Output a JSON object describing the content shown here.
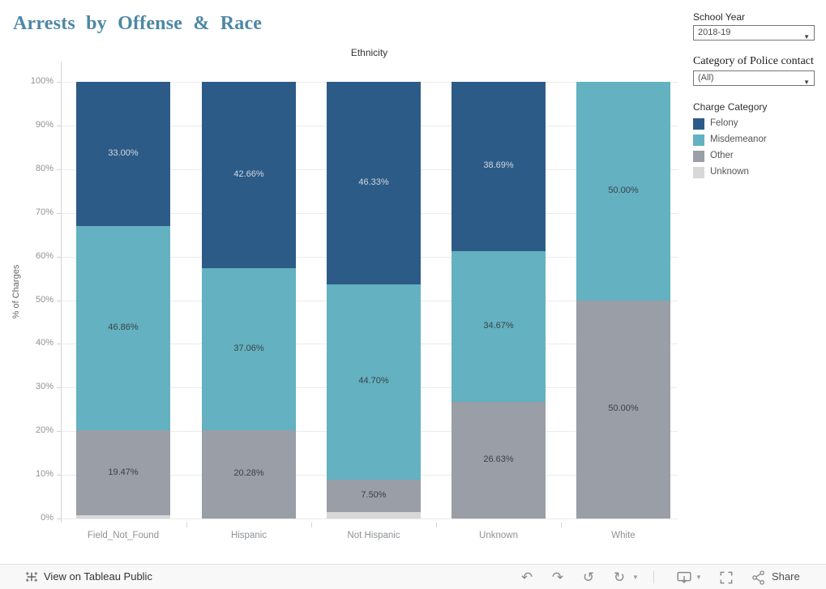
{
  "page": {
    "title": "Arrests by Offense & Race"
  },
  "filters": {
    "school_year": {
      "label": "School Year",
      "value": "2018-19"
    },
    "police_contact": {
      "label": "Category of Police contact",
      "value": "(All)"
    }
  },
  "legend": {
    "title": "Charge Category",
    "items": [
      {
        "label": "Felony",
        "color": "#2d5b87"
      },
      {
        "label": "Misdemeanor",
        "color": "#63b1c1"
      },
      {
        "label": "Other",
        "color": "#999ea7"
      },
      {
        "label": "Unknown",
        "color": "#d8d8d8"
      }
    ]
  },
  "chart_data": {
    "type": "bar",
    "stacked": true,
    "normalized": true,
    "title": "Ethnicity",
    "xlabel": "",
    "ylabel": "% of Charges",
    "ylim": [
      0,
      100
    ],
    "ytick_step": 10,
    "ytick_suffix": "%",
    "grid": true,
    "legend_position": "right",
    "categories": [
      "Field_Not_Found",
      "Hispanic",
      "Not Hispanic",
      "Unknown",
      "White"
    ],
    "series": [
      {
        "name": "Felony",
        "color": "#2d5b87",
        "label_color": "#cfd8df",
        "values": [
          33.0,
          42.66,
          46.33,
          38.69,
          0
        ],
        "labels": [
          "33.00%",
          "42.66%",
          "46.33%",
          "38.69%",
          ""
        ]
      },
      {
        "name": "Misdemeanor",
        "color": "#63b1c1",
        "label_color": "#3c4248",
        "values": [
          46.86,
          37.06,
          44.7,
          34.67,
          50.0
        ],
        "labels": [
          "46.86%",
          "37.06%",
          "44.70%",
          "34.67%",
          "50.00%"
        ]
      },
      {
        "name": "Other",
        "color": "#999ea7",
        "label_color": "#3c4248",
        "values": [
          19.47,
          20.28,
          7.5,
          26.63,
          50.0
        ],
        "labels": [
          "19.47%",
          "20.28%",
          "7.50%",
          "26.63%",
          "50.00%"
        ]
      },
      {
        "name": "Unknown",
        "color": "#d8d8d8",
        "label_color": "#3c4248",
        "values": [
          0.67,
          0.0,
          1.47,
          0.01,
          0
        ],
        "labels": [
          "",
          "",
          "",
          "",
          ""
        ]
      }
    ]
  },
  "toolbar": {
    "view_on_label": "View on Tableau Public",
    "share_label": "Share"
  }
}
